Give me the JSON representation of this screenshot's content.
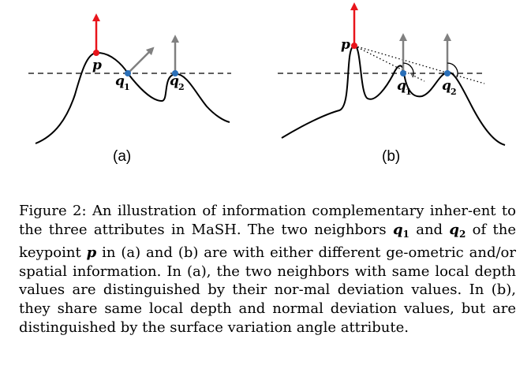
{
  "figure": {
    "panel_a": {
      "label": "(a)",
      "point_p": "p",
      "point_q1": "q",
      "point_q1_sub": "1",
      "point_q2": "q",
      "point_q2_sub": "2"
    },
    "panel_b": {
      "label": "(b)",
      "point_p": "p",
      "point_q1": "q",
      "point_q1_sub": "1",
      "point_q2": "q",
      "point_q2_sub": "2"
    },
    "colors": {
      "keypoint": "#e8141b",
      "neighbor": "#2a6fb8",
      "normal_gray": "#808080",
      "curve": "#000000"
    }
  },
  "caption": {
    "part1": "Figure 2: An illustration of information complementary inher-ent to the three attributes in MaSH. The two neighbors ",
    "q": "q",
    "sub1": "1",
    "and": " and",
    "q2": "q",
    "sub2": "2",
    "part2": " of the keypoint ",
    "p": "p",
    "part3": " in (a) and (b) are with either different ge-ometric and/or spatial information. In (a), the two neighbors with same local depth values are distinguished by their nor-mal deviation values. In (b), they share same local depth and normal deviation values, but are distinguished by the surface variation angle attribute."
  }
}
